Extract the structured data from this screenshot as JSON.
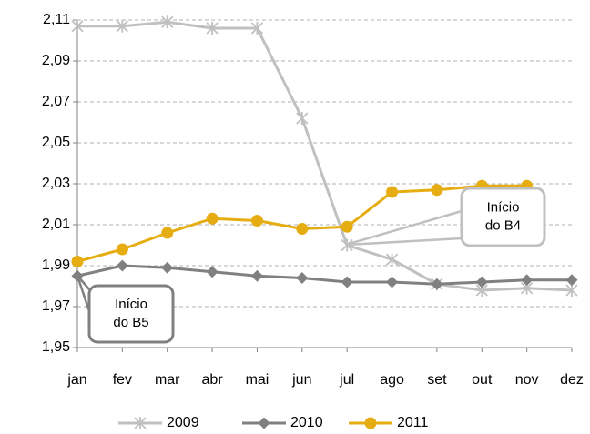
{
  "chart_data": {
    "type": "line",
    "categories": [
      "jan",
      "fev",
      "mar",
      "abr",
      "mai",
      "jun",
      "jul",
      "ago",
      "set",
      "out",
      "nov",
      "dez"
    ],
    "series": [
      {
        "name": "2009",
        "color": "#c0c0c0",
        "marker": "star",
        "values": [
          2.107,
          2.107,
          2.109,
          2.106,
          2.106,
          2.062,
          2.0,
          1.993,
          1.981,
          1.978,
          1.979,
          1.978
        ]
      },
      {
        "name": "2010",
        "color": "#808080",
        "marker": "diamond",
        "values": [
          1.985,
          1.99,
          1.989,
          1.987,
          1.985,
          1.984,
          1.982,
          1.982,
          1.981,
          1.982,
          1.983,
          1.983
        ]
      },
      {
        "name": "2011",
        "color": "#e6ad12",
        "marker": "circle",
        "values": [
          1.992,
          1.998,
          2.006,
          2.013,
          2.012,
          2.008,
          2.009,
          2.026,
          2.027,
          2.029,
          2.029,
          null
        ]
      }
    ],
    "ylim": [
      1.95,
      2.11
    ],
    "yticks": [
      {
        "value": 1.95,
        "label": "1,95"
      },
      {
        "value": 1.97,
        "label": "1,97"
      },
      {
        "value": 1.99,
        "label": "1,99"
      },
      {
        "value": 2.01,
        "label": "2,01"
      },
      {
        "value": 2.03,
        "label": "2,03"
      },
      {
        "value": 2.05,
        "label": "2,05"
      },
      {
        "value": 2.07,
        "label": "2,07"
      },
      {
        "value": 2.09,
        "label": "2,09"
      },
      {
        "value": 2.11,
        "label": "2,11"
      }
    ],
    "grid": true,
    "legend": "bottom",
    "annotations": [
      {
        "lines": [
          "Início",
          "do B4"
        ],
        "color": "#c0c0c0"
      },
      {
        "lines": [
          "Início",
          "do B5"
        ],
        "color": "#808080"
      }
    ]
  }
}
